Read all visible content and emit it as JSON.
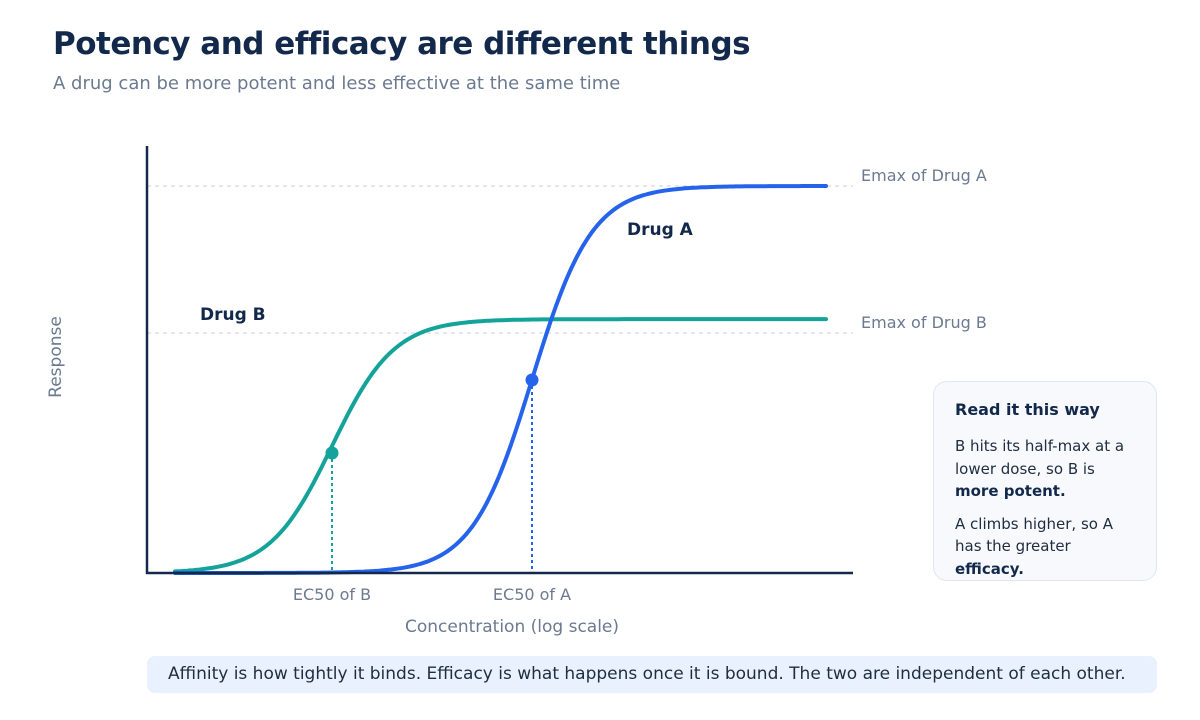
{
  "header": {
    "title": "Potency and efficacy are different things",
    "subtitle": "A drug can be more potent and less effective at the same time"
  },
  "chart_data": {
    "type": "line",
    "title": "Potency and efficacy are different things",
    "xlabel": "Concentration (log scale)",
    "ylabel": "Response",
    "x_scale": "log",
    "y_range": [
      0,
      1
    ],
    "series": [
      {
        "name": "Drug A",
        "color": "#2563eb",
        "emax": 1.0,
        "ec50_label": "EC50 of A",
        "emax_label": "Emax of Drug A"
      },
      {
        "name": "Drug B",
        "color": "#14a39a",
        "emax": 0.656,
        "ec50_label": "EC50 of B",
        "emax_label": "Emax of Drug B"
      }
    ],
    "annotations": {
      "emax_a": "Emax of Drug A",
      "emax_b": "Emax of Drug B",
      "ec50_a": "EC50 of A",
      "ec50_b": "EC50 of B"
    },
    "colors": {
      "axis": "#13294b",
      "label": "#6b7a90",
      "guide": "#c8d0db"
    }
  },
  "callout": {
    "title": "Read it this way",
    "p1_text": "B hits its half-max at a lower dose, so B is ",
    "p1_bold": "more potent.",
    "p2_text": "A climbs higher, so A has the greater ",
    "p2_bold": "efficacy."
  },
  "footer": {
    "note": "Affinity is how tightly it binds. Efficacy is what happens once it is bound. The two are independent of each other."
  }
}
